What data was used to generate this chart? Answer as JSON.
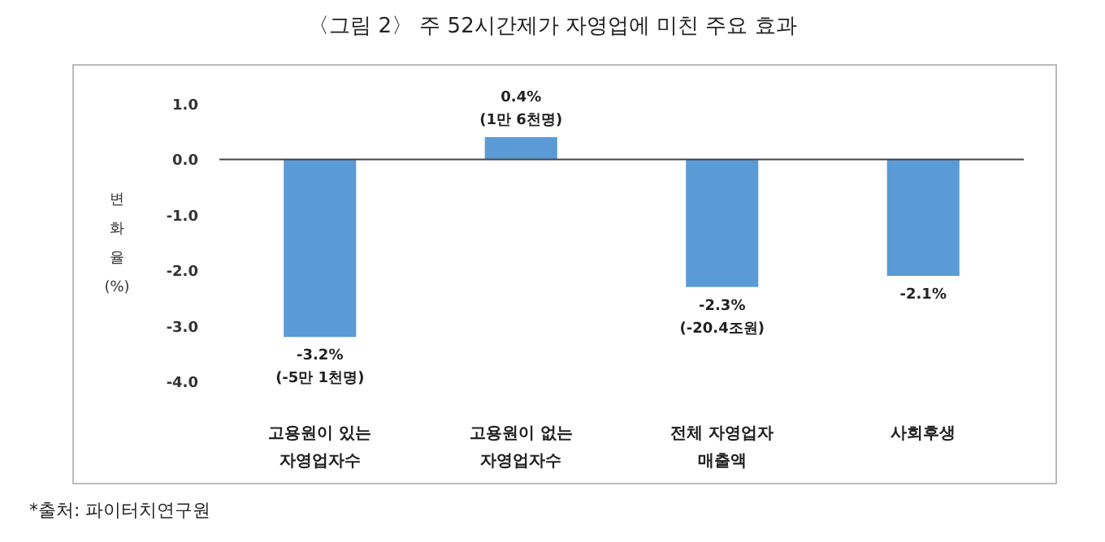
{
  "chart_data": {
    "type": "bar",
    "title": "〈그림 2〉 주 52시간제가 자영업에 미친 주요 효과",
    "categories": [
      "고용원이 있는\n자영업자수",
      "고용원이 없는\n자영업자수",
      "전체 자영업자\n매출액",
      "사회후생"
    ],
    "values": [
      -3.2,
      0.4,
      -2.3,
      -2.1
    ],
    "color": "#5b9bd5",
    "value_labels": [
      "-3.2%",
      "0.4%",
      "-2.3%",
      "-2.1%"
    ],
    "ylabel": "변화율(%)",
    "ylim": [
      -4,
      1
    ],
    "yticks": [
      {
        "value": 1,
        "label": "1.0"
      },
      {
        "value": 0,
        "label": "0.0"
      },
      {
        "value": -1,
        "label": "-1.0"
      },
      {
        "value": -2,
        "label": "-2.0"
      },
      {
        "value": -3,
        "label": "-3.0"
      },
      {
        "value": -4,
        "label": "-4.0"
      }
    ],
    "annotations": [
      {
        "text": "(-5만 1천명)",
        "x": "고용원이 있는\n자영업자수",
        "y": -3.2
      },
      {
        "text": "(1만 6천명)",
        "x": "고용원이 없는\n자영업자수",
        "y": 0.4
      },
      {
        "text": "(-20.4조원)",
        "x": "전체 자영업자\n매출액",
        "y": -2.3
      },
      "*출처: 파이터치연구원"
    ]
  }
}
